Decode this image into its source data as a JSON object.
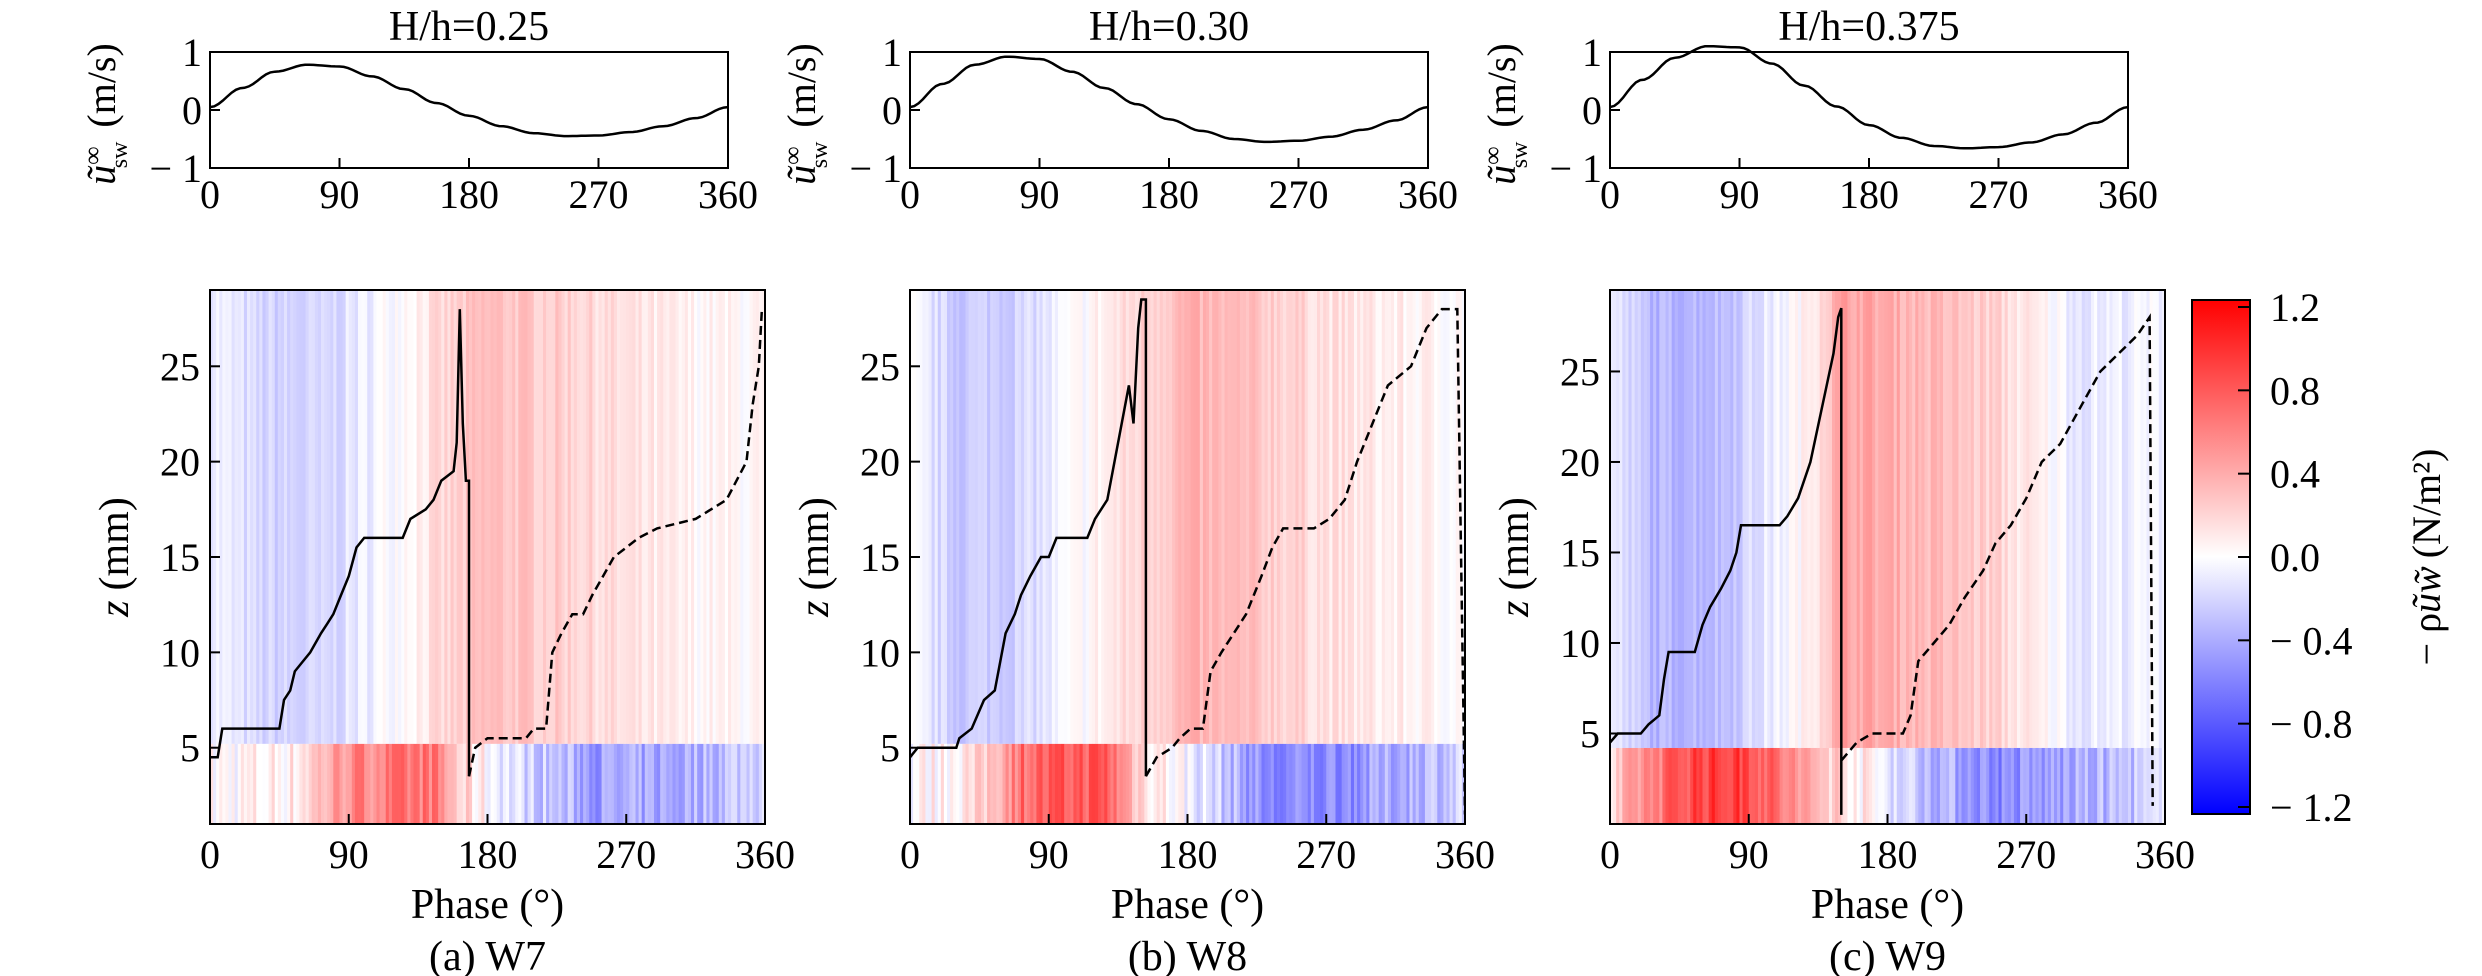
{
  "figure": {
    "shared": {
      "wave_ylabel": "(m/s)",
      "wave_yticks": [
        "1",
        "0",
        "− 1"
      ],
      "phase_ticks": [
        "0",
        "90",
        "180",
        "270",
        "360"
      ],
      "phase_xlabel": "Phase (°)",
      "z_ylabel": "z (mm)",
      "z_yticks": [
        "5",
        "10",
        "15",
        "20",
        "25"
      ]
    },
    "colorbar": {
      "ticks": [
        "1.2",
        "0.8",
        "0.4",
        "0.0",
        "− 0.4",
        "− 0.8",
        "− 1.2"
      ],
      "label": "(N/m²)",
      "range": [
        -1.2,
        1.2
      ],
      "colors": {
        "positive": "#ff0000",
        "zero": "#ffffff",
        "negative": "#0000ff"
      }
    }
  },
  "chart_data": [
    {
      "type": "line",
      "title": "H/h=0.25",
      "x": [
        0,
        22.5,
        45,
        67.5,
        90,
        112.5,
        135,
        157.5,
        180,
        202.5,
        225,
        247.5,
        270,
        292.5,
        315,
        337.5,
        360
      ],
      "y": [
        0.05,
        0.38,
        0.66,
        0.78,
        0.75,
        0.58,
        0.36,
        0.12,
        -0.1,
        -0.28,
        -0.4,
        -0.45,
        -0.44,
        -0.38,
        -0.28,
        -0.14,
        0.05
      ],
      "xlim": [
        0,
        360
      ],
      "ylim": [
        -1,
        1
      ]
    },
    {
      "type": "line",
      "title": "H/h=0.30",
      "x": [
        0,
        22.5,
        45,
        67.5,
        90,
        112.5,
        135,
        157.5,
        180,
        202.5,
        225,
        247.5,
        270,
        292.5,
        315,
        337.5,
        360
      ],
      "y": [
        0.05,
        0.45,
        0.78,
        0.92,
        0.88,
        0.66,
        0.38,
        0.1,
        -0.16,
        -0.36,
        -0.5,
        -0.55,
        -0.53,
        -0.46,
        -0.34,
        -0.18,
        0.05
      ],
      "xlim": [
        0,
        360
      ],
      "ylim": [
        -1,
        1
      ]
    },
    {
      "type": "line",
      "title": "H/h=0.375",
      "x": [
        0,
        22.5,
        45,
        67.5,
        90,
        112.5,
        135,
        157.5,
        180,
        202.5,
        225,
        247.5,
        270,
        292.5,
        315,
        337.5,
        360
      ],
      "y": [
        0.05,
        0.52,
        0.9,
        1.1,
        1.08,
        0.8,
        0.42,
        0.06,
        -0.26,
        -0.48,
        -0.62,
        -0.66,
        -0.64,
        -0.56,
        -0.42,
        -0.22,
        0.05
      ],
      "xlim": [
        0,
        360
      ],
      "ylim": [
        -1,
        1
      ]
    },
    {
      "type": "heatmap",
      "caption": "(a) W7",
      "xlabel": "Phase (°)",
      "ylabel": "z (mm)",
      "xlim": [
        0,
        360
      ],
      "ylim": [
        1,
        29
      ],
      "solid_line": [
        [
          0,
          4.5
        ],
        [
          5,
          4.5
        ],
        [
          8,
          6
        ],
        [
          45,
          6
        ],
        [
          48,
          7.5
        ],
        [
          52,
          8
        ],
        [
          55,
          9
        ],
        [
          60,
          9.5
        ],
        [
          65,
          10
        ],
        [
          72,
          11
        ],
        [
          76,
          11.5
        ],
        [
          80,
          12
        ],
        [
          85,
          13
        ],
        [
          90,
          14
        ],
        [
          95,
          15.5
        ],
        [
          100,
          16
        ],
        [
          125,
          16
        ],
        [
          130,
          17
        ],
        [
          140,
          17.5
        ],
        [
          145,
          18
        ],
        [
          150,
          19
        ],
        [
          158,
          19.5
        ],
        [
          160,
          21
        ],
        [
          162,
          28
        ],
        [
          164,
          22
        ],
        [
          166,
          19
        ],
        [
          168,
          19
        ],
        [
          168,
          3.5
        ]
      ],
      "dashed_line": [
        [
          168,
          3.5
        ],
        [
          172,
          5
        ],
        [
          180,
          5.5
        ],
        [
          205,
          5.5
        ],
        [
          210,
          6
        ],
        [
          218,
          6
        ],
        [
          222,
          10
        ],
        [
          228,
          11
        ],
        [
          235,
          12
        ],
        [
          242,
          12
        ],
        [
          248,
          13
        ],
        [
          255,
          14
        ],
        [
          262,
          15
        ],
        [
          270,
          15.5
        ],
        [
          278,
          16
        ],
        [
          290,
          16.5
        ],
        [
          315,
          17
        ],
        [
          335,
          18
        ],
        [
          348,
          20
        ],
        [
          352,
          23
        ],
        [
          356,
          25
        ],
        [
          358,
          28
        ],
        [
          360,
          28
        ]
      ],
      "bands": [
        [
          0.0,
          -0.05
        ],
        [
          0.08,
          -0.2
        ],
        [
          0.2,
          -0.22
        ],
        [
          0.35,
          0.05
        ],
        [
          0.5,
          0.3
        ],
        [
          0.65,
          0.22
        ],
        [
          0.75,
          0.12
        ],
        [
          0.85,
          0.05
        ],
        [
          1.0,
          0.02
        ]
      ],
      "surface": [
        [
          0.0,
          0.0
        ],
        [
          0.15,
          0.1
        ],
        [
          0.25,
          0.55
        ],
        [
          0.4,
          0.65
        ],
        [
          0.45,
          0.2
        ],
        [
          0.55,
          -0.15
        ],
        [
          0.7,
          -0.45
        ],
        [
          0.85,
          -0.4
        ],
        [
          1.0,
          -0.15
        ]
      ]
    },
    {
      "type": "heatmap",
      "caption": "(b) W8",
      "xlabel": "Phase (°)",
      "ylabel": "z (mm)",
      "xlim": [
        0,
        360
      ],
      "ylim": [
        1,
        29
      ],
      "solid_line": [
        [
          0,
          4.5
        ],
        [
          5,
          5
        ],
        [
          30,
          5
        ],
        [
          32,
          5.5
        ],
        [
          40,
          6
        ],
        [
          48,
          7.5
        ],
        [
          55,
          8
        ],
        [
          62,
          11
        ],
        [
          68,
          12
        ],
        [
          72,
          13
        ],
        [
          78,
          14
        ],
        [
          85,
          15
        ],
        [
          90,
          15
        ],
        [
          95,
          16
        ],
        [
          115,
          16
        ],
        [
          120,
          17
        ],
        [
          128,
          18
        ],
        [
          135,
          21
        ],
        [
          142,
          24
        ],
        [
          145,
          22
        ],
        [
          148,
          27
        ],
        [
          150,
          28.5
        ],
        [
          153,
          28.5
        ],
        [
          153,
          3.5
        ]
      ],
      "dashed_line": [
        [
          153,
          3.5
        ],
        [
          160,
          4.5
        ],
        [
          170,
          5
        ],
        [
          175,
          5.5
        ],
        [
          182,
          6
        ],
        [
          190,
          6
        ],
        [
          195,
          9
        ],
        [
          202,
          10
        ],
        [
          210,
          11
        ],
        [
          218,
          12
        ],
        [
          228,
          14
        ],
        [
          235,
          15.5
        ],
        [
          242,
          16.5
        ],
        [
          262,
          16.5
        ],
        [
          272,
          17
        ],
        [
          282,
          18
        ],
        [
          290,
          20
        ],
        [
          300,
          22
        ],
        [
          310,
          24
        ],
        [
          325,
          25
        ],
        [
          335,
          27
        ],
        [
          345,
          28
        ],
        [
          355,
          28
        ],
        [
          360,
          1.5
        ]
      ],
      "bands": [
        [
          0.0,
          -0.05
        ],
        [
          0.08,
          -0.25
        ],
        [
          0.2,
          -0.2
        ],
        [
          0.35,
          0.08
        ],
        [
          0.5,
          0.35
        ],
        [
          0.65,
          0.25
        ],
        [
          0.75,
          0.15
        ],
        [
          0.85,
          0.08
        ],
        [
          1.0,
          0.02
        ]
      ],
      "surface": [
        [
          0.0,
          0.0
        ],
        [
          0.12,
          0.15
        ],
        [
          0.2,
          0.7
        ],
        [
          0.35,
          0.8
        ],
        [
          0.42,
          0.2
        ],
        [
          0.55,
          -0.2
        ],
        [
          0.65,
          -0.6
        ],
        [
          0.8,
          -0.5
        ],
        [
          1.0,
          -0.2
        ]
      ]
    },
    {
      "type": "heatmap",
      "caption": "(c) W9",
      "xlabel": "Phase (°)",
      "ylabel": "z (mm)",
      "xlim": [
        0,
        360
      ],
      "ylim": [
        0,
        29.5
      ],
      "solid_line": [
        [
          0,
          4.5
        ],
        [
          5,
          5
        ],
        [
          20,
          5
        ],
        [
          25,
          5.5
        ],
        [
          32,
          6
        ],
        [
          35,
          8
        ],
        [
          38,
          9.5
        ],
        [
          55,
          9.5
        ],
        [
          60,
          11
        ],
        [
          65,
          12
        ],
        [
          72,
          13
        ],
        [
          78,
          14
        ],
        [
          82,
          15
        ],
        [
          85,
          16.5
        ],
        [
          110,
          16.5
        ],
        [
          115,
          17
        ],
        [
          122,
          18
        ],
        [
          130,
          20
        ],
        [
          135,
          22
        ],
        [
          140,
          24
        ],
        [
          145,
          26
        ],
        [
          148,
          28
        ],
        [
          150,
          28.5
        ],
        [
          150,
          0.5
        ]
      ],
      "dashed_line": [
        [
          150,
          3.5
        ],
        [
          160,
          4.5
        ],
        [
          170,
          5
        ],
        [
          190,
          5
        ],
        [
          195,
          6
        ],
        [
          200,
          9
        ],
        [
          210,
          10
        ],
        [
          220,
          11
        ],
        [
          230,
          12.5
        ],
        [
          242,
          14
        ],
        [
          250,
          15.5
        ],
        [
          260,
          16.5
        ],
        [
          270,
          18
        ],
        [
          280,
          20
        ],
        [
          292,
          21
        ],
        [
          305,
          23
        ],
        [
          318,
          25
        ],
        [
          330,
          26
        ],
        [
          342,
          27
        ],
        [
          350,
          28
        ],
        [
          352,
          1
        ]
      ],
      "bands": [
        [
          0.0,
          -0.1
        ],
        [
          0.08,
          -0.35
        ],
        [
          0.2,
          -0.3
        ],
        [
          0.35,
          0.05
        ],
        [
          0.42,
          0.45
        ],
        [
          0.55,
          0.35
        ],
        [
          0.7,
          0.2
        ],
        [
          0.85,
          -0.1
        ],
        [
          1.0,
          -0.05
        ]
      ],
      "surface": [
        [
          0.0,
          0.1
        ],
        [
          0.05,
          0.5
        ],
        [
          0.15,
          0.9
        ],
        [
          0.25,
          0.9
        ],
        [
          0.35,
          0.4
        ],
        [
          0.45,
          0.1
        ],
        [
          0.55,
          -0.25
        ],
        [
          0.7,
          -0.55
        ],
        [
          0.85,
          -0.4
        ],
        [
          1.0,
          -0.2
        ]
      ]
    }
  ]
}
